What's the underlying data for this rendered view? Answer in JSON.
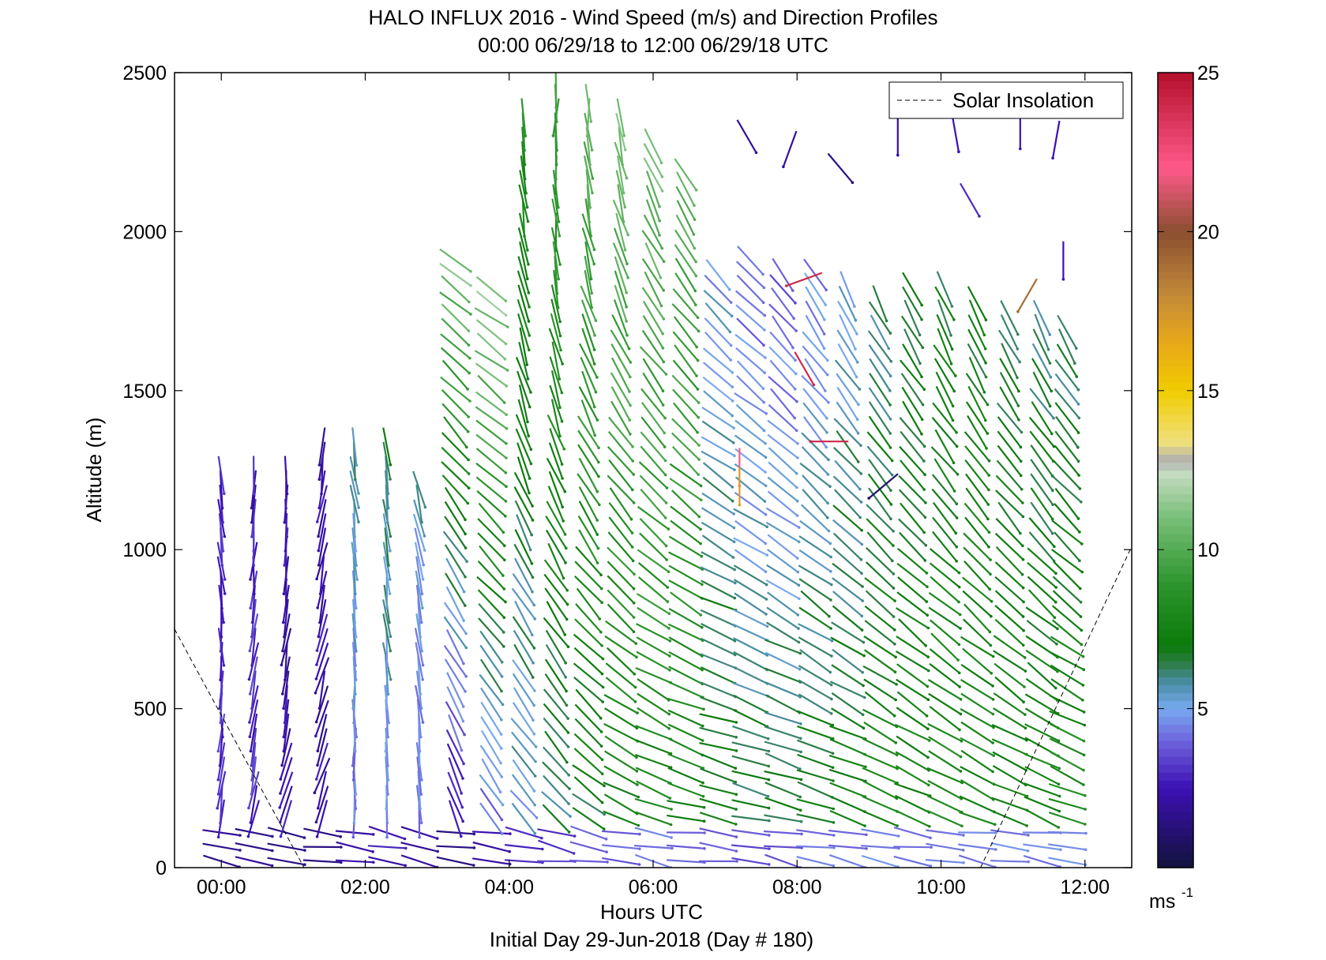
{
  "chart_data": {
    "type": "wind_barb_profile",
    "title": "HALO INFLUX 2016 - Wind Speed (m/s) and Direction Profiles",
    "subtitle": "00:00 06/29/18 to 12:00 06/29/18  UTC",
    "xlabel": "Hours UTC",
    "xlabel2": "Initial Day 29-Jun-2018 (Day # 180)",
    "ylabel": "Altitude (m)",
    "x_units": "hours",
    "xlim": [
      -0.65,
      12.65
    ],
    "ylim": [
      0,
      2500
    ],
    "x_ticks": [
      {
        "value": 0,
        "label": "00:00"
      },
      {
        "value": 2,
        "label": "02:00"
      },
      {
        "value": 4,
        "label": "04:00"
      },
      {
        "value": 6,
        "label": "06:00"
      },
      {
        "value": 8,
        "label": "08:00"
      },
      {
        "value": 10,
        "label": "10:00"
      },
      {
        "value": 12,
        "label": "12:00"
      }
    ],
    "y_ticks": [
      {
        "value": 0,
        "label": "0"
      },
      {
        "value": 500,
        "label": "500"
      },
      {
        "value": 1000,
        "label": "1000"
      },
      {
        "value": 1500,
        "label": "1500"
      },
      {
        "value": 2000,
        "label": "2000"
      },
      {
        "value": 2500,
        "label": "2500"
      }
    ],
    "legend": {
      "label": "Solar Insolation",
      "placement": "top-right",
      "style": "dashed"
    },
    "colorbar": {
      "units_label": "ms",
      "units_exponent": "-1",
      "range": [
        0,
        25
      ],
      "ticks": [
        {
          "value": 5,
          "label": "5"
        },
        {
          "value": 10,
          "label": "10"
        },
        {
          "value": 15,
          "label": "15"
        },
        {
          "value": 20,
          "label": "20"
        },
        {
          "value": 25,
          "label": "25"
        }
      ],
      "stops": [
        {
          "v": 0,
          "c": "#12123c"
        },
        {
          "v": 2.5,
          "c": "#3c10b4"
        },
        {
          "v": 4,
          "c": "#6e64dc"
        },
        {
          "v": 5,
          "c": "#78aaf0"
        },
        {
          "v": 5.8,
          "c": "#4a8ea8"
        },
        {
          "v": 6.4,
          "c": "#2f7d4a"
        },
        {
          "v": 7,
          "c": "#0a7a0a"
        },
        {
          "v": 9,
          "c": "#2e962e"
        },
        {
          "v": 11,
          "c": "#78be78"
        },
        {
          "v": 12.4,
          "c": "#c4dcc0"
        },
        {
          "v": 12.8,
          "c": "#b0b0b0"
        },
        {
          "v": 13.4,
          "c": "#f0e07a"
        },
        {
          "v": 15,
          "c": "#f0cc00"
        },
        {
          "v": 16.5,
          "c": "#e8a818"
        },
        {
          "v": 18,
          "c": "#c48a38"
        },
        {
          "v": 20,
          "c": "#8a4e30"
        },
        {
          "v": 22,
          "c": "#ff5a8a"
        },
        {
          "v": 25,
          "c": "#b4102c"
        }
      ]
    },
    "solar_insolation_line": [
      {
        "x": -0.65,
        "y": 750
      },
      {
        "x": 1.15,
        "y": 0
      },
      {
        "x": 10.55,
        "y": 0
      },
      {
        "x": 12.65,
        "y": 1010
      }
    ],
    "profiles": [
      {
        "x": 0.0,
        "top": 1270,
        "s0": 3.0,
        "s1": 3.0,
        "dir0": 260,
        "dir1": 300
      },
      {
        "x": 0.45,
        "top": 1250,
        "s0": 3.0,
        "s1": 2.5,
        "dir0": 255,
        "dir1": 285
      },
      {
        "x": 0.9,
        "top": 1250,
        "s0": 2.5,
        "s1": 2.0,
        "dir0": 255,
        "dir1": 280
      },
      {
        "x": 1.4,
        "top": 1330,
        "s0": 2.0,
        "s1": 3.0,
        "dir0": 250,
        "dir1": 275
      },
      {
        "x": 1.85,
        "top": 1330,
        "s0": 4.0,
        "s1": 7.5,
        "dir0": 265,
        "dir1": 290
      },
      {
        "x": 2.3,
        "top": 1330,
        "s0": 4.5,
        "s1": 8.0,
        "dir0": 270,
        "dir1": 290
      },
      {
        "x": 2.75,
        "top": 1230,
        "s0": 4.0,
        "s1": 7.0,
        "dir0": 270,
        "dir1": 300
      },
      {
        "x": 3.25,
        "top": 1930,
        "s0": 1.5,
        "s1": 14.0,
        "dir0": 290,
        "dir1": 330
      },
      {
        "x": 3.75,
        "top": 1830,
        "s0": 3.5,
        "s1": 14.5,
        "dir0": 300,
        "dir1": 335
      },
      {
        "x": 4.2,
        "top": 2400,
        "s0": 5.0,
        "s1": 8.5,
        "dir0": 315,
        "dir1": 270
      },
      {
        "x": 4.65,
        "top": 2450,
        "s0": 6.0,
        "s1": 9.5,
        "dir0": 320,
        "dir1": 265
      },
      {
        "x": 5.1,
        "top": 2420,
        "s0": 6.5,
        "s1": 10.5,
        "dir0": 330,
        "dir1": 270
      },
      {
        "x": 5.55,
        "top": 2380,
        "s0": 7.0,
        "s1": 11.0,
        "dir0": 340,
        "dir1": 275
      },
      {
        "x": 6.0,
        "top": 2300,
        "s0": 7.5,
        "s1": 11.0,
        "dir0": 345,
        "dir1": 285
      },
      {
        "x": 6.45,
        "top": 2200,
        "s0": 7.5,
        "s1": 10.5,
        "dir0": 350,
        "dir1": 290
      },
      {
        "x": 6.9,
        "top": 1900,
        "s0": 7.5,
        "s1": 4.0,
        "dir0": 350,
        "dir1": 300
      },
      {
        "x": 7.35,
        "top": 1950,
        "s0": 7.0,
        "s1": 3.0,
        "dir0": 350,
        "dir1": 300
      },
      {
        "x": 7.8,
        "top": 1900,
        "s0": 7.0,
        "s1": 3.0,
        "dir0": 350,
        "dir1": 290
      },
      {
        "x": 8.25,
        "top": 1900,
        "s0": 7.5,
        "s1": 3.5,
        "dir0": 345,
        "dir1": 285
      },
      {
        "x": 8.7,
        "top": 1850,
        "s0": 7.5,
        "s1": 4.5,
        "dir0": 345,
        "dir1": 280
      },
      {
        "x": 9.15,
        "top": 1800,
        "s0": 8.0,
        "s1": 5.5,
        "dir0": 340,
        "dir1": 280
      },
      {
        "x": 9.6,
        "top": 1850,
        "s0": 8.0,
        "s1": 6.0,
        "dir0": 340,
        "dir1": 280
      },
      {
        "x": 10.05,
        "top": 1850,
        "s0": 8.0,
        "s1": 6.5,
        "dir0": 340,
        "dir1": 275
      },
      {
        "x": 10.5,
        "top": 1800,
        "s0": 8.0,
        "s1": 6.5,
        "dir0": 340,
        "dir1": 275
      },
      {
        "x": 10.95,
        "top": 1750,
        "s0": 8.0,
        "s1": 6.0,
        "dir0": 340,
        "dir1": 275
      },
      {
        "x": 11.4,
        "top": 1750,
        "s0": 8.0,
        "s1": 5.5,
        "dir0": 340,
        "dir1": 275
      },
      {
        "x": 11.75,
        "top": 1700,
        "s0": 8.5,
        "s1": 5.0,
        "dir0": 345,
        "dir1": 275
      }
    ],
    "upper_level_arrows": [
      {
        "x": 7.3,
        "y": 2300,
        "speed": 2.0,
        "dir": 300
      },
      {
        "x": 7.9,
        "y": 2260,
        "speed": 2.0,
        "dir": 250
      },
      {
        "x": 8.6,
        "y": 2200,
        "speed": 1.5,
        "dir": 310
      },
      {
        "x": 9.4,
        "y": 2300,
        "speed": 2.0,
        "dir": 270
      },
      {
        "x": 10.2,
        "y": 2310,
        "speed": 2.5,
        "dir": 280
      },
      {
        "x": 11.1,
        "y": 2320,
        "speed": 2.5,
        "dir": 270
      },
      {
        "x": 11.6,
        "y": 2290,
        "speed": 2.5,
        "dir": 260
      },
      {
        "x": 10.4,
        "y": 2100,
        "speed": 3.0,
        "dir": 300
      },
      {
        "x": 11.7,
        "y": 1910,
        "speed": 2.5,
        "dir": 270
      },
      {
        "x": 11.2,
        "y": 1800,
        "speed": 19.0,
        "dir": 240
      },
      {
        "x": 8.1,
        "y": 1570,
        "speed": 24.0,
        "dir": 300
      },
      {
        "x": 8.45,
        "y": 1340,
        "speed": 24.0,
        "dir": 180
      },
      {
        "x": 7.2,
        "y": 1260,
        "speed": 22.0,
        "dir": 270
      },
      {
        "x": 7.2,
        "y": 1200,
        "speed": 17.0,
        "dir": 270
      },
      {
        "x": 8.1,
        "y": 1850,
        "speed": 24.0,
        "dir": 200
      },
      {
        "x": 9.2,
        "y": 1200,
        "speed": 1.0,
        "dir": 220
      }
    ]
  }
}
